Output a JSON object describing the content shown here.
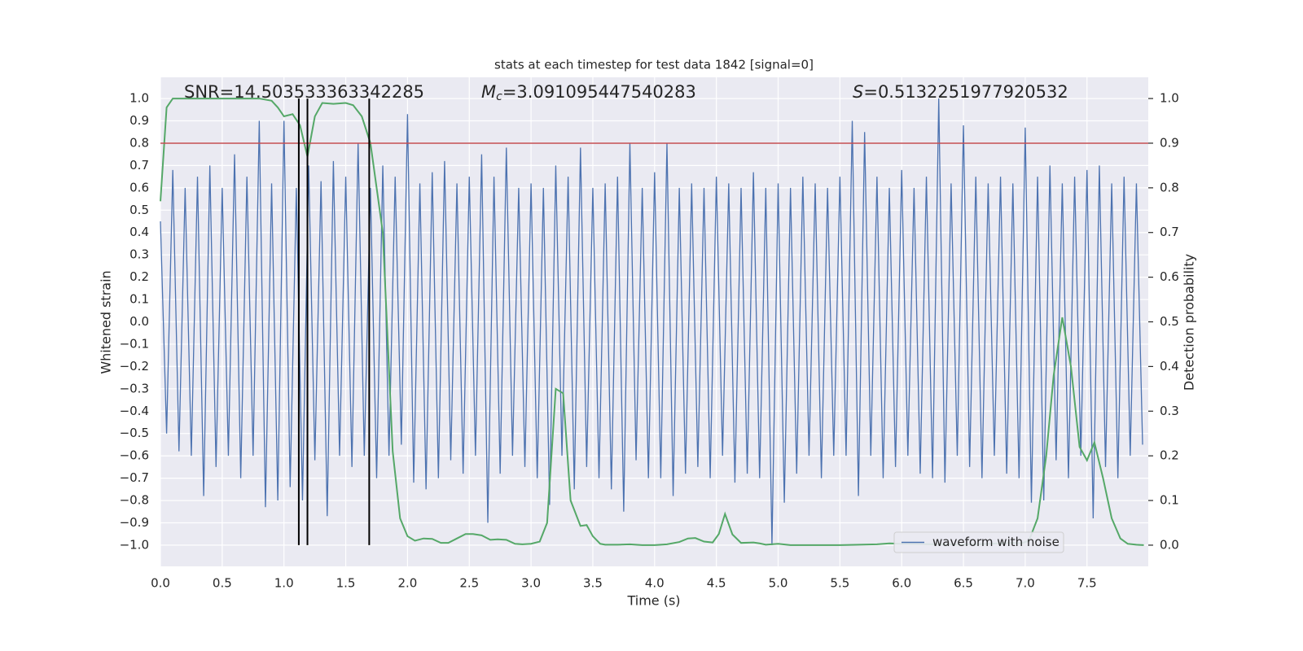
{
  "chart_data": {
    "type": "line",
    "title": "stats at each timestep for test data 1842 [signal=0]",
    "xlabel": "Time (s)",
    "ylabel": "Whitened strain",
    "y2label": "Detection probability",
    "background": "#eaeaf2",
    "grid": true,
    "legend": "lower right",
    "xlim": [
      0,
      7.996
    ],
    "ylim": [
      -1.095,
      1.095
    ],
    "y2lim": [
      -0.0475,
      1.0475
    ],
    "xticks": [
      {
        "value": 0,
        "label": "0.0"
      },
      0.5,
      {
        "value": 1,
        "label": "1.0"
      },
      1.5,
      {
        "value": 2,
        "label": "2.0"
      },
      2.5,
      {
        "value": 3,
        "label": "3.0"
      },
      3.5,
      {
        "value": 4,
        "label": "4.0"
      },
      4.5,
      {
        "value": 5,
        "label": "5.0"
      },
      5.5,
      {
        "value": 6,
        "label": "6.0"
      },
      6.5,
      {
        "value": 7,
        "label": "7.0"
      },
      7.5
    ],
    "yticks": [
      {
        "value": -1,
        "label": "−1.0"
      },
      {
        "value": -0.9,
        "label": "−0.9"
      },
      {
        "value": -0.8,
        "label": "−0.8"
      },
      {
        "value": -0.7,
        "label": "−0.7"
      },
      {
        "value": -0.6,
        "label": "−0.6"
      },
      {
        "value": -0.5,
        "label": "−0.5"
      },
      {
        "value": -0.4,
        "label": "−0.4"
      },
      {
        "value": -0.3,
        "label": "−0.3"
      },
      {
        "value": -0.2,
        "label": "−0.2"
      },
      {
        "value": -0.1,
        "label": "−0.1"
      },
      {
        "value": 0,
        "label": "0.0"
      },
      0.1,
      0.2,
      0.3,
      0.4,
      0.5,
      0.6,
      0.7,
      0.8,
      0.9,
      {
        "value": 1,
        "label": "1.0"
      }
    ],
    "y2ticks": [
      {
        "value": 0,
        "label": "0.0"
      },
      0.1,
      0.2,
      0.3,
      0.4,
      0.5,
      0.6,
      0.7,
      0.8,
      0.9,
      {
        "value": 1,
        "label": "1.0"
      }
    ],
    "series": [
      {
        "name": "waveform with noise",
        "color": "#4c72b0",
        "x": [
          0,
          0.05,
          0.1,
          0.15,
          0.2,
          0.25,
          0.3,
          0.35,
          0.4,
          0.45,
          0.5,
          0.55,
          0.6,
          0.65,
          0.7,
          0.75,
          0.8,
          0.85,
          0.9,
          0.95,
          1,
          1.05,
          1.1,
          1.15,
          1.2,
          1.25,
          1.3,
          1.35,
          1.4,
          1.45,
          1.5,
          1.55,
          1.6,
          1.65,
          1.7,
          1.75,
          1.8,
          1.85,
          1.9,
          1.95,
          2,
          2.05,
          2.1,
          2.15,
          2.2,
          2.25,
          2.3,
          2.35,
          2.4,
          2.45,
          2.5,
          2.55,
          2.6,
          2.65,
          2.7,
          2.75,
          2.8,
          2.85,
          2.9,
          2.95,
          3,
          3.05,
          3.1,
          3.15,
          3.2,
          3.25,
          3.3,
          3.35,
          3.4,
          3.45,
          3.5,
          3.55,
          3.6,
          3.65,
          3.7,
          3.75,
          3.8,
          3.85,
          3.9,
          3.95,
          4,
          4.05,
          4.1,
          4.15,
          4.2,
          4.25,
          4.3,
          4.35,
          4.4,
          4.45,
          4.5,
          4.55,
          4.6,
          4.65,
          4.7,
          4.75,
          4.8,
          4.85,
          4.9,
          4.95,
          5,
          5.05,
          5.1,
          5.15,
          5.2,
          5.25,
          5.3,
          5.35,
          5.4,
          5.45,
          5.5,
          5.55,
          5.6,
          5.65,
          5.7,
          5.75,
          5.8,
          5.85,
          5.9,
          5.95,
          6,
          6.05,
          6.1,
          6.15,
          6.2,
          6.25,
          6.3,
          6.35,
          6.4,
          6.45,
          6.5,
          6.55,
          6.6,
          6.65,
          6.7,
          6.75,
          6.8,
          6.85,
          6.9,
          6.95,
          7,
          7.05,
          7.1,
          7.15,
          7.2,
          7.25,
          7.3,
          7.35,
          7.4,
          7.45,
          7.5,
          7.55,
          7.6,
          7.65,
          7.7,
          7.75,
          7.8,
          7.85,
          7.9,
          7.95
        ],
        "values": [
          0.45,
          -0.5,
          0.68,
          -0.58,
          0.6,
          -0.6,
          0.65,
          -0.78,
          0.7,
          -0.65,
          0.6,
          -0.6,
          0.75,
          -0.7,
          0.65,
          -0.6,
          0.9,
          -0.83,
          0.62,
          -0.8,
          0.9,
          -0.74,
          0.6,
          -0.8,
          0.7,
          -0.62,
          0.63,
          -0.87,
          0.72,
          -0.6,
          0.65,
          -0.65,
          0.8,
          -0.6,
          0.6,
          -0.7,
          0.7,
          -0.6,
          0.65,
          -0.55,
          0.93,
          -0.72,
          0.62,
          -0.75,
          0.67,
          -0.7,
          0.72,
          -0.62,
          0.62,
          -0.68,
          0.65,
          -0.6,
          0.75,
          -0.9,
          0.65,
          -0.68,
          0.78,
          -0.6,
          0.6,
          -0.65,
          0.62,
          -0.7,
          0.6,
          -0.82,
          0.7,
          -0.6,
          0.65,
          -0.75,
          0.78,
          -0.65,
          0.6,
          -0.7,
          0.62,
          -0.75,
          0.65,
          -0.85,
          0.8,
          -0.62,
          0.6,
          -0.7,
          0.67,
          -0.7,
          0.8,
          -0.78,
          0.6,
          -0.68,
          0.62,
          -0.65,
          0.6,
          -0.7,
          0.65,
          -0.6,
          0.62,
          -0.72,
          0.6,
          -0.68,
          0.67,
          -0.7,
          0.6,
          -1.0,
          0.62,
          -0.81,
          0.6,
          -0.68,
          0.65,
          -0.6,
          0.62,
          -0.7,
          0.6,
          -0.6,
          0.65,
          -0.6,
          0.9,
          -0.78,
          0.85,
          -0.6,
          0.65,
          -0.7,
          0.6,
          -0.65,
          0.68,
          -0.6,
          0.6,
          -0.68,
          0.65,
          -0.7,
          1.0,
          -0.72,
          0.62,
          -0.6,
          0.88,
          -0.65,
          0.65,
          -0.7,
          0.62,
          -0.6,
          0.65,
          -0.68,
          0.62,
          -0.7,
          0.87,
          -0.81,
          0.65,
          -0.8,
          0.7,
          -0.62,
          0.62,
          -0.7,
          0.65,
          -0.6,
          0.68,
          -0.88,
          0.7,
          -0.65,
          0.62,
          -0.7,
          0.65,
          -0.6,
          0.62,
          -0.55
        ]
      },
      {
        "color": "#55a868",
        "axis": "y2",
        "x": [
          0,
          0.05,
          0.1,
          0.2,
          0.4,
          0.6,
          0.8,
          0.9,
          0.95,
          1,
          1.07,
          1.13,
          1.19,
          1.25,
          1.31,
          1.4,
          1.5,
          1.56,
          1.63,
          1.7,
          1.8,
          1.88,
          1.94,
          2,
          2.06,
          2.13,
          2.2,
          2.27,
          2.33,
          2.4,
          2.47,
          2.53,
          2.6,
          2.67,
          2.73,
          2.8,
          2.87,
          2.93,
          3,
          3.07,
          3.13,
          3.2,
          3.26,
          3.32,
          3.4,
          3.45,
          3.5,
          3.56,
          3.6,
          3.7,
          3.8,
          3.9,
          4,
          4.1,
          4.2,
          4.27,
          4.33,
          4.4,
          4.47,
          4.52,
          4.57,
          4.63,
          4.7,
          4.8,
          4.85,
          4.9,
          5,
          5.1,
          5.5,
          5.8,
          5.9,
          6,
          6.3,
          6.6,
          6.9,
          6.97,
          7.03,
          7.1,
          7.17,
          7.23,
          7.3,
          7.37,
          7.44,
          7.5,
          7.56,
          7.63,
          7.7,
          7.77,
          7.83,
          7.9,
          7.96
        ],
        "values": [
          0.77,
          0.98,
          1,
          1,
          1,
          1,
          1,
          0.995,
          0.98,
          0.96,
          0.965,
          0.94,
          0.87,
          0.96,
          0.99,
          0.988,
          0.99,
          0.985,
          0.96,
          0.9,
          0.7,
          0.21,
          0.06,
          0.02,
          0.01,
          0.015,
          0.014,
          0.005,
          0.005,
          0.015,
          0.025,
          0.025,
          0.022,
          0.012,
          0.013,
          0.012,
          0.003,
          0.002,
          0.003,
          0.008,
          0.05,
          0.35,
          0.34,
          0.1,
          0.043,
          0.045,
          0.02,
          0.003,
          0.001,
          0.001,
          0.002,
          0,
          0,
          0.002,
          0.007,
          0.015,
          0.016,
          0.008,
          0.006,
          0.025,
          0.07,
          0.024,
          0.005,
          0.006,
          0.004,
          0.001,
          0.003,
          0,
          0,
          0.002,
          0.004,
          0.003,
          0.002,
          0.002,
          0.005,
          0.004,
          0.01,
          0.06,
          0.2,
          0.38,
          0.51,
          0.4,
          0.22,
          0.19,
          0.23,
          0.15,
          0.06,
          0.015,
          0.003,
          0.001,
          0
        ]
      }
    ],
    "vlines": {
      "x": [
        1.12,
        1.19,
        1.69
      ],
      "ymin": -1,
      "ymax": 1,
      "color": "#000000"
    },
    "hline": {
      "value": 0.9,
      "axis": "y2",
      "color": "#c44e52"
    },
    "annotations": [
      {
        "text": "SNR=14.503533363342285"
      },
      {
        "symbol": "M",
        "subscript": "c",
        "text": "=3.091095447540283"
      },
      {
        "symbol": "S",
        "text": "=0.5132251977920532"
      }
    ]
  }
}
